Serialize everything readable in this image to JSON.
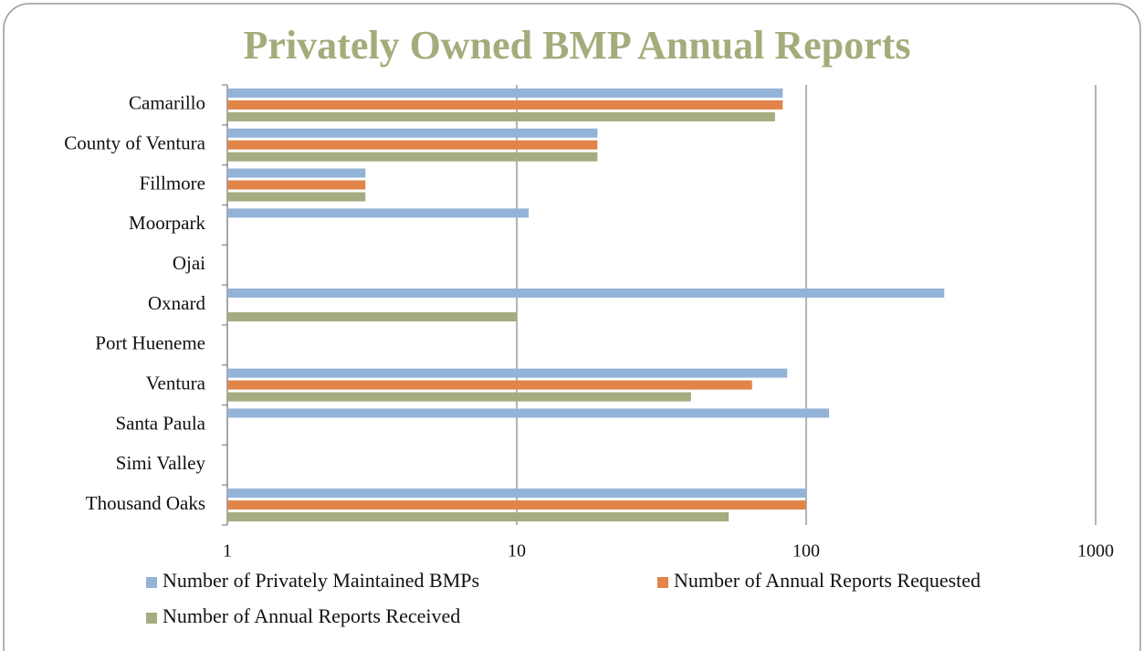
{
  "chart_data": {
    "type": "bar",
    "orientation": "horizontal",
    "title": "Privately Owned BMP Annual Reports",
    "categories": [
      "Camarillo",
      "County of Ventura",
      "Fillmore",
      "Moorpark",
      "Ojai",
      "Oxnard",
      "Port Hueneme",
      "Ventura",
      "Santa Paula",
      "Simi Valley",
      "Thousand Oaks"
    ],
    "series": [
      {
        "name": "Number of Privately Maintained BMPs",
        "color": "#93b3d7",
        "values": [
          83,
          19,
          3,
          11,
          null,
          300,
          null,
          86,
          120,
          null,
          100
        ]
      },
      {
        "name": "Number of Annual Reports Requested",
        "color": "#e0844a",
        "values": [
          83,
          19,
          3,
          null,
          null,
          null,
          null,
          65,
          null,
          null,
          100
        ]
      },
      {
        "name": "Number of Annual Reports Received",
        "color": "#a6ab81",
        "values": [
          78,
          19,
          3,
          null,
          null,
          10,
          null,
          40,
          null,
          null,
          54
        ]
      }
    ],
    "xscale": "log",
    "xlim": [
      1,
      1000
    ],
    "xticks": [
      1,
      10,
      100,
      1000
    ],
    "grid": true,
    "legend": "bottom"
  }
}
